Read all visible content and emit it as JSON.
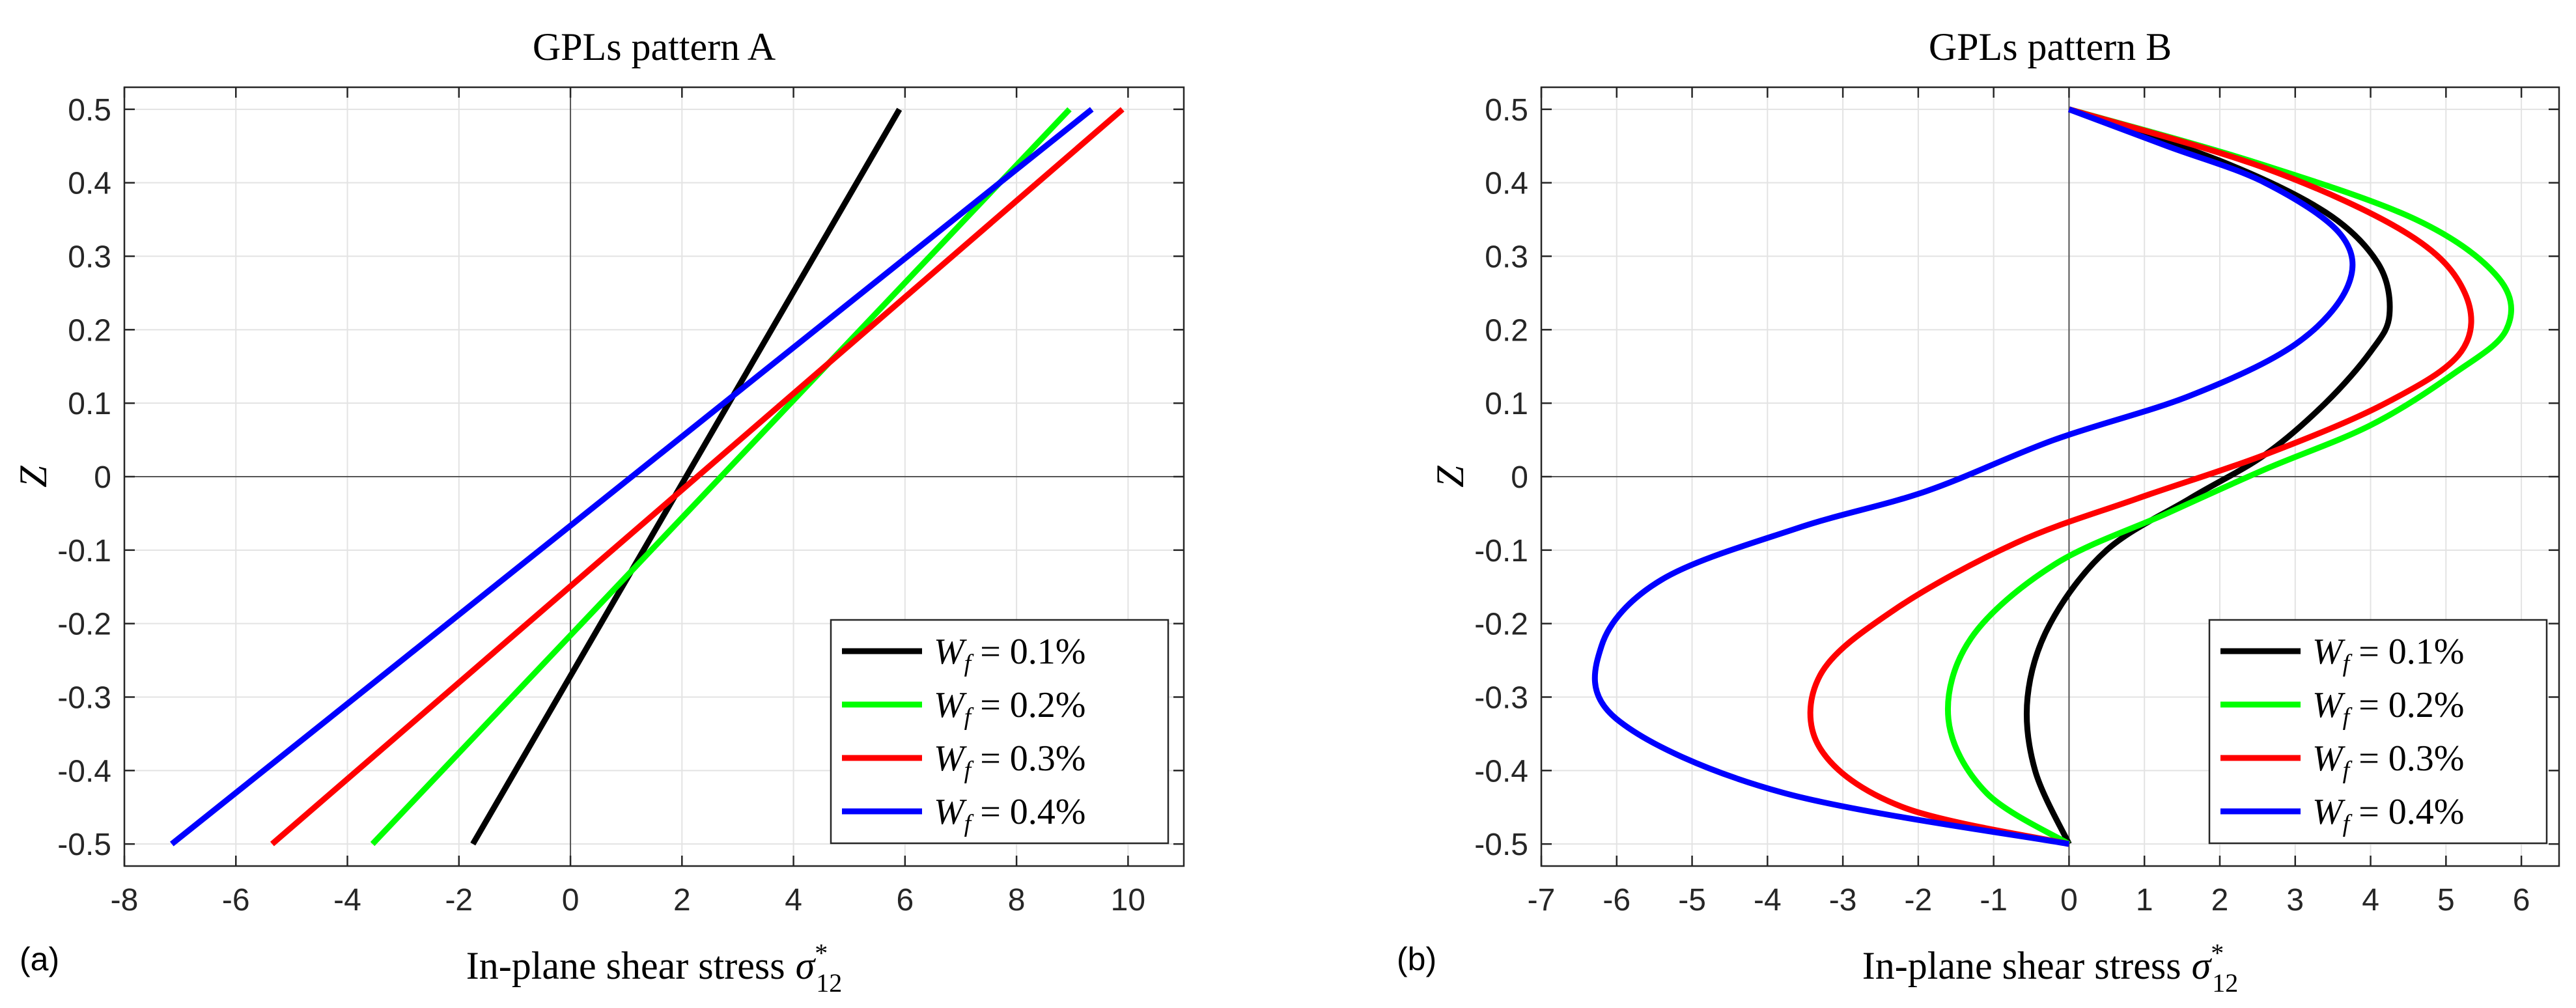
{
  "chart_data": [
    {
      "type": "line",
      "panel_label": "(a)",
      "title": "GPLs pattern A",
      "xlabel": "In-plane shear stress",
      "xlabel_symbol": "σ",
      "xlabel_sub": "12",
      "xlabel_sup": "*",
      "ylabel": "Z",
      "xlim": [
        -8,
        11
      ],
      "ylim": [
        -0.53,
        0.53
      ],
      "xticks": [
        "-8",
        "-6",
        "-4",
        "-2",
        "0",
        "2",
        "4",
        "6",
        "8",
        "10"
      ],
      "yticks": [
        "-0.5",
        "-0.4",
        "-0.3",
        "-0.2",
        "-0.1",
        "0",
        "0.1",
        "0.2",
        "0.3",
        "0.4",
        "0.5"
      ],
      "legend": "bottom-right",
      "series": [
        {
          "name": "W_f = 0.1%",
          "label_var": "W",
          "label_sub": "f",
          "label_rest": " = 0.1%",
          "color": "#000000",
          "x": [
            -1.75,
            5.9
          ],
          "y": [
            -0.5,
            0.5
          ]
        },
        {
          "name": "W_f = 0.2%",
          "label_var": "W",
          "label_sub": "f",
          "label_rest": " = 0.2%",
          "color": "#00ff00",
          "x": [
            -3.55,
            8.95
          ],
          "y": [
            -0.5,
            0.5
          ]
        },
        {
          "name": "W_f = 0.3%",
          "label_var": "W",
          "label_sub": "f",
          "label_rest": " = 0.3%",
          "color": "#ff0000",
          "x": [
            -5.35,
            9.9
          ],
          "y": [
            -0.5,
            0.5
          ]
        },
        {
          "name": "W_f = 0.4%",
          "label_var": "W",
          "label_sub": "f",
          "label_rest": " = 0.4%",
          "color": "#0000ff",
          "x": [
            -7.15,
            9.35
          ],
          "y": [
            -0.5,
            0.5
          ]
        }
      ]
    },
    {
      "type": "line",
      "panel_label": "(b)",
      "title": "GPLs pattern B",
      "xlabel": "In-plane shear stress",
      "xlabel_symbol": "σ",
      "xlabel_sub": "12",
      "xlabel_sup": "*",
      "ylabel": "Z",
      "xlim": [
        -7,
        6.5
      ],
      "ylim": [
        -0.53,
        0.53
      ],
      "xticks": [
        "-7",
        "-6",
        "-5",
        "-4",
        "-3",
        "-2",
        "-1",
        "0",
        "1",
        "2",
        "3",
        "4",
        "5",
        "6"
      ],
      "yticks": [
        "-0.5",
        "-0.4",
        "-0.3",
        "-0.2",
        "-0.1",
        "0",
        "0.1",
        "0.2",
        "0.3",
        "0.4",
        "0.5"
      ],
      "legend": "bottom-right",
      "series": [
        {
          "name": "W_f = 0.1%",
          "label_var": "W",
          "label_sub": "f",
          "label_rest": " = 0.1%",
          "color": "#000000",
          "x": [
            0,
            -0.45,
            -0.55,
            -0.25,
            0.5,
            1.6,
            2.6,
            3.4,
            4.0,
            4.25,
            4.1,
            3.4,
            2.0,
            0
          ],
          "y": [
            -0.5,
            -0.4,
            -0.3,
            -0.2,
            -0.1,
            -0.03,
            0.03,
            0.1,
            0.17,
            0.22,
            0.29,
            0.36,
            0.43,
            0.5
          ]
        },
        {
          "name": "W_f = 0.2%",
          "label_var": "W",
          "label_sub": "f",
          "label_rest": " = 0.2%",
          "color": "#00ff00",
          "x": [
            0,
            -1.1,
            -1.6,
            -1.3,
            -0.2,
            1.3,
            2.6,
            4.0,
            5.1,
            5.8,
            5.7,
            4.6,
            2.4,
            0
          ],
          "y": [
            -0.5,
            -0.43,
            -0.33,
            -0.22,
            -0.12,
            -0.05,
            0.01,
            0.07,
            0.14,
            0.2,
            0.27,
            0.35,
            0.43,
            0.5
          ]
        },
        {
          "name": "W_f = 0.3%",
          "label_var": "W",
          "label_sub": "f",
          "label_rest": " = 0.3%",
          "color": "#ff0000",
          "x": [
            0,
            -2.2,
            -3.3,
            -3.3,
            -2.3,
            -0.7,
            0.9,
            2.6,
            4.2,
            5.2,
            5.25,
            4.5,
            2.6,
            0
          ],
          "y": [
            -0.5,
            -0.45,
            -0.37,
            -0.27,
            -0.18,
            -0.09,
            -0.03,
            0.03,
            0.1,
            0.17,
            0.25,
            0.33,
            0.42,
            0.5
          ]
        },
        {
          "name": "W_f = 0.4%",
          "label_var": "W",
          "label_sub": "f",
          "label_rest": " = 0.4%",
          "color": "#0000ff",
          "x": [
            0,
            -3.8,
            -6.0,
            -6.2,
            -5.4,
            -3.6,
            -1.9,
            -0.2,
            1.6,
            3.0,
            3.7,
            3.6,
            2.6,
            1.3,
            0
          ],
          "y": [
            -0.5,
            -0.43,
            -0.33,
            -0.23,
            -0.14,
            -0.07,
            -0.02,
            0.05,
            0.11,
            0.18,
            0.26,
            0.33,
            0.4,
            0.45,
            0.5
          ]
        }
      ]
    }
  ]
}
